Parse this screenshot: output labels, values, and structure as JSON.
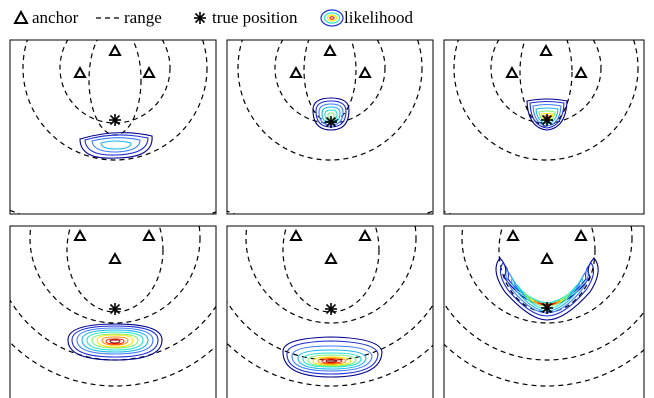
{
  "legend": {
    "anchor_label": "anchor",
    "range_label": "range",
    "true_position_label": "true position",
    "likelihood_label": "likelihood"
  },
  "colors": {
    "frame": "#000000",
    "contour_scale": [
      "#00008b",
      "#1a2bd6",
      "#3d7cff",
      "#19b6f0",
      "#27e6d0",
      "#7ef07a",
      "#ffe600",
      "#ff8a00",
      "#ff1e00",
      "#8b0000"
    ]
  },
  "panels": [
    {
      "id": "top-left",
      "anchor_count": 3,
      "contour_levels": 4,
      "shape": "oval"
    },
    {
      "id": "top-middle",
      "anchor_count": 3,
      "contour_levels": 6,
      "shape": "oval"
    },
    {
      "id": "top-right",
      "anchor_count": 3,
      "contour_levels": 8,
      "shape": "cup"
    },
    {
      "id": "bottom-left",
      "anchor_count": 3,
      "contour_levels": 10,
      "shape": "oval"
    },
    {
      "id": "bottom-middle",
      "anchor_count": 3,
      "contour_levels": 10,
      "shape": "oval"
    },
    {
      "id": "bottom-right",
      "anchor_count": 3,
      "contour_levels": 10,
      "shape": "crescent"
    }
  ]
}
